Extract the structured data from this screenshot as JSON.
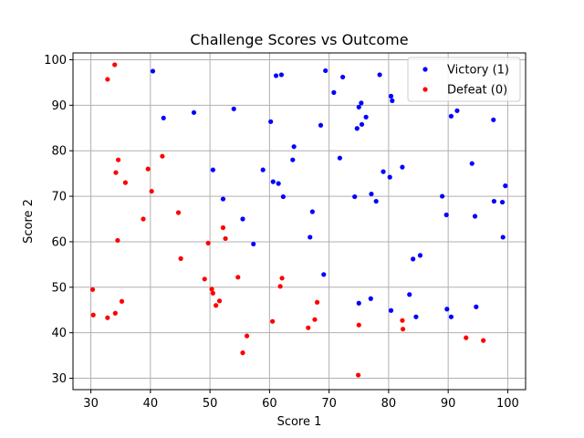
{
  "chart_data": {
    "type": "scatter",
    "title": "Challenge Scores vs Outcome",
    "xlabel": "Score 1",
    "ylabel": "Score 2",
    "xlim": [
      27,
      103
    ],
    "ylim": [
      27.5,
      101.5
    ],
    "xticks": [
      30,
      40,
      50,
      60,
      70,
      80,
      90,
      100
    ],
    "yticks": [
      30,
      40,
      50,
      60,
      70,
      80,
      90,
      100
    ],
    "grid": true,
    "legend": "top-right",
    "series": [
      {
        "name": "Victory (1)",
        "color": "#0000ff",
        "points": [
          [
            40.4,
            97.5
          ],
          [
            61.1,
            96.5
          ],
          [
            62.0,
            96.7
          ],
          [
            69.4,
            97.6
          ],
          [
            72.3,
            96.2
          ],
          [
            78.5,
            96.7
          ],
          [
            80.4,
            92.0
          ],
          [
            80.6,
            91.0
          ],
          [
            70.8,
            92.8
          ],
          [
            75.4,
            90.5
          ],
          [
            75.0,
            89.6
          ],
          [
            47.3,
            88.4
          ],
          [
            54.0,
            89.2
          ],
          [
            42.2,
            87.2
          ],
          [
            91.5,
            88.8
          ],
          [
            90.5,
            87.6
          ],
          [
            97.6,
            86.8
          ],
          [
            76.2,
            87.4
          ],
          [
            60.2,
            86.4
          ],
          [
            68.6,
            85.6
          ],
          [
            74.7,
            84.9
          ],
          [
            75.5,
            85.8
          ],
          [
            64.1,
            80.9
          ],
          [
            63.9,
            78.0
          ],
          [
            71.8,
            78.4
          ],
          [
            82.3,
            76.4
          ],
          [
            79.1,
            75.4
          ],
          [
            80.2,
            74.2
          ],
          [
            94.0,
            77.2
          ],
          [
            50.5,
            75.8
          ],
          [
            58.9,
            75.8
          ],
          [
            60.6,
            73.2
          ],
          [
            61.5,
            72.8
          ],
          [
            99.6,
            72.3
          ],
          [
            52.2,
            69.4
          ],
          [
            62.3,
            69.9
          ],
          [
            74.3,
            69.9
          ],
          [
            77.1,
            70.5
          ],
          [
            77.9,
            68.9
          ],
          [
            89.0,
            70.0
          ],
          [
            97.7,
            68.9
          ],
          [
            99.1,
            68.7
          ],
          [
            67.2,
            66.6
          ],
          [
            89.7,
            65.9
          ],
          [
            94.5,
            65.6
          ],
          [
            55.5,
            65.0
          ],
          [
            57.3,
            59.5
          ],
          [
            66.8,
            61.0
          ],
          [
            99.2,
            61.0
          ],
          [
            85.3,
            57.0
          ],
          [
            84.1,
            56.2
          ],
          [
            69.1,
            52.8
          ],
          [
            83.5,
            48.4
          ],
          [
            77.0,
            47.5
          ],
          [
            75.0,
            46.5
          ],
          [
            94.7,
            45.7
          ],
          [
            80.4,
            44.9
          ],
          [
            84.6,
            43.5
          ],
          [
            89.8,
            45.2
          ],
          [
            90.5,
            43.5
          ]
        ]
      },
      {
        "name": "Defeat (0)",
        "color": "#ff0000",
        "points": [
          [
            34.0,
            98.9
          ],
          [
            32.8,
            95.7
          ],
          [
            42.0,
            78.8
          ],
          [
            34.6,
            78.0
          ],
          [
            39.6,
            76.0
          ],
          [
            34.2,
            75.2
          ],
          [
            35.8,
            73.0
          ],
          [
            40.2,
            71.1
          ],
          [
            44.7,
            66.4
          ],
          [
            38.8,
            65.0
          ],
          [
            52.2,
            63.1
          ],
          [
            52.6,
            60.7
          ],
          [
            34.5,
            60.3
          ],
          [
            49.7,
            59.7
          ],
          [
            45.1,
            56.3
          ],
          [
            54.7,
            52.2
          ],
          [
            62.1,
            52.0
          ],
          [
            49.1,
            51.8
          ],
          [
            61.8,
            50.2
          ],
          [
            50.3,
            49.6
          ],
          [
            30.3,
            49.5
          ],
          [
            50.5,
            48.7
          ],
          [
            51.6,
            47.0
          ],
          [
            35.2,
            46.9
          ],
          [
            68.0,
            46.7
          ],
          [
            51.0,
            46.0
          ],
          [
            34.1,
            44.3
          ],
          [
            30.4,
            43.9
          ],
          [
            32.8,
            43.3
          ],
          [
            60.5,
            42.5
          ],
          [
            67.6,
            42.9
          ],
          [
            82.3,
            42.7
          ],
          [
            66.5,
            41.1
          ],
          [
            82.4,
            40.8
          ],
          [
            75.0,
            41.7
          ],
          [
            56.2,
            39.3
          ],
          [
            93.0,
            38.9
          ],
          [
            95.9,
            38.3
          ],
          [
            55.5,
            35.6
          ],
          [
            74.9,
            30.7
          ]
        ]
      }
    ]
  }
}
